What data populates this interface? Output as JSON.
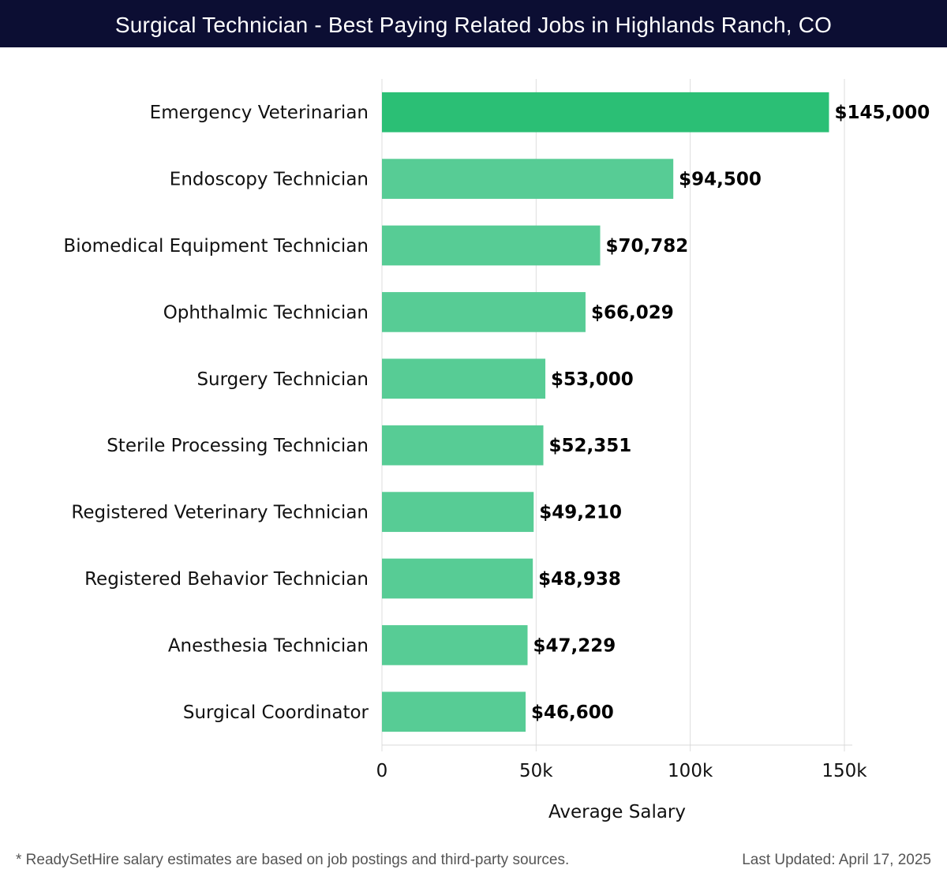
{
  "header": {
    "title": "Surgical Technician - Best Paying Related Jobs in Highlands Ranch, CO"
  },
  "chart_data": {
    "type": "bar",
    "orientation": "horizontal",
    "title": "Surgical Technician - Best Paying Related Jobs in Highlands Ranch, CO",
    "categories": [
      "Emergency Veterinarian",
      "Endoscopy Technician",
      "Biomedical Equipment Technician",
      "Ophthalmic Technician",
      "Surgery Technician",
      "Sterile Processing Technician",
      "Registered Veterinary Technician",
      "Registered Behavior Technician",
      "Anesthesia Technician",
      "Surgical Coordinator"
    ],
    "values": [
      145000,
      94500,
      70782,
      66029,
      53000,
      52351,
      49210,
      48938,
      47229,
      46600
    ],
    "value_labels": [
      "$145,000",
      "$94,500",
      "$70,782",
      "$66,029",
      "$53,000",
      "$52,351",
      "$49,210",
      "$48,938",
      "$47,229",
      "$46,600"
    ],
    "xlabel": "Average Salary",
    "ylabel": "",
    "xlim": [
      0,
      150000
    ],
    "x_ticks": [
      0,
      50000,
      100000,
      150000
    ],
    "x_tick_labels": [
      "0",
      "50k",
      "100k",
      "150k"
    ],
    "grid": true,
    "colors": {
      "top_bar": "#2bbf75",
      "bar": "#57cc95"
    }
  },
  "footer": {
    "note": "* ReadySetHire salary estimates are based on job postings and third-party sources.",
    "updated": "Last Updated: April 17, 2025"
  }
}
